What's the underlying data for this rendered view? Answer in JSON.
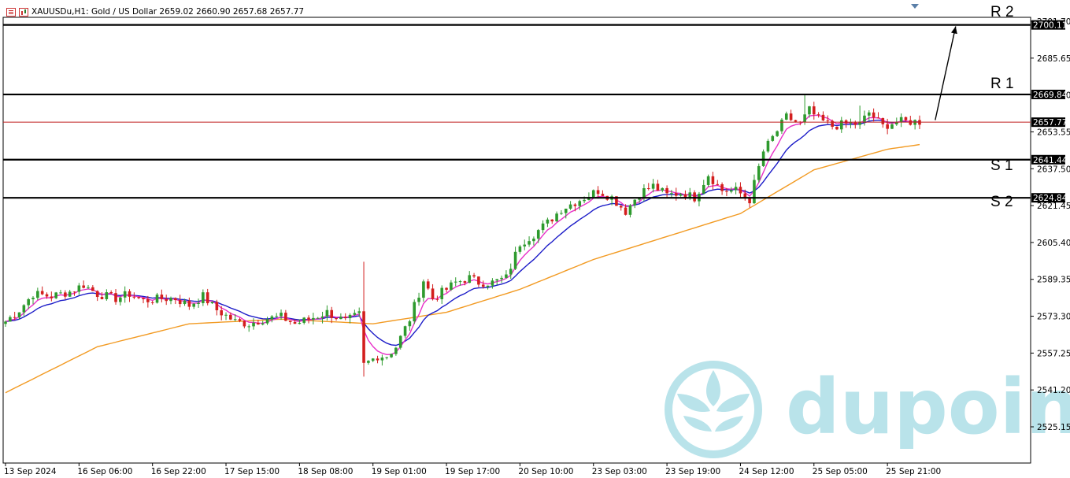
{
  "header": {
    "title": "XAUUSDu,H1:  Gold / US Dollar  2659.02 2660.90 2657.68 2657.77"
  },
  "watermark": {
    "text": "dupoin"
  },
  "colors": {
    "up": "#2e9a2e",
    "down": "#d31e1e",
    "ma_fast": "#e830c8",
    "ma_mid": "#1c1cc8",
    "ma_slow": "#f29a22",
    "price_line": "#c02020",
    "level_line": "#000000"
  },
  "levels": [
    {
      "name": "R 2",
      "price": 2700.11,
      "label": "2700.11"
    },
    {
      "name": "R 1",
      "price": 2669.84,
      "label": "2669.84"
    },
    {
      "name": "S 1",
      "price": 2641.44,
      "label": "2641.44"
    },
    {
      "name": "S 2",
      "price": 2624.84,
      "label": "2624.84"
    }
  ],
  "current_price": {
    "price": 2657.77,
    "label": "2657.77"
  },
  "chart_data": {
    "type": "candlestick",
    "title": "XAUUSDu,H1: Gold / US Dollar",
    "ylim": [
      2512,
      2704
    ],
    "y_ticks": [
      {
        "value": 2701.7,
        "label": "2701.70"
      },
      {
        "value": 2685.65,
        "label": "2685.65"
      },
      {
        "value": 2669.6,
        "label": "2669.60"
      },
      {
        "value": 2653.55,
        "label": "2653.55"
      },
      {
        "value": 2637.5,
        "label": "2637.50"
      },
      {
        "value": 2621.45,
        "label": "2621.45"
      },
      {
        "value": 2605.4,
        "label": "2605.40"
      },
      {
        "value": 2589.35,
        "label": "2589.35"
      },
      {
        "value": 2573.3,
        "label": "2573.30"
      },
      {
        "value": 2557.25,
        "label": "2557.25"
      },
      {
        "value": 2541.2,
        "label": "2541.20"
      },
      {
        "value": 2525.15,
        "label": "2525.15"
      }
    ],
    "x_ticks": [
      {
        "index": 0,
        "label": "13 Sep 2024"
      },
      {
        "index": 16,
        "label": "16 Sep 06:00"
      },
      {
        "index": 32,
        "label": "16 Sep 22:00"
      },
      {
        "index": 48,
        "label": "17 Sep 15:00"
      },
      {
        "index": 64,
        "label": "18 Sep 08:00"
      },
      {
        "index": 80,
        "label": "19 Sep 01:00"
      },
      {
        "index": 96,
        "label": "19 Sep 17:00"
      },
      {
        "index": 112,
        "label": "20 Sep 10:00"
      },
      {
        "index": 128,
        "label": "23 Sep 03:00"
      },
      {
        "index": 144,
        "label": "23 Sep 19:00"
      },
      {
        "index": 160,
        "label": "24 Sep 12:00"
      },
      {
        "index": 176,
        "label": "25 Sep 05:00"
      },
      {
        "index": 192,
        "label": "25 Sep 21:00"
      }
    ],
    "close_path": [
      [
        0,
        2571
      ],
      [
        3,
        2576
      ],
      [
        6,
        2583
      ],
      [
        10,
        2582
      ],
      [
        14,
        2584
      ],
      [
        17,
        2587
      ],
      [
        20,
        2583
      ],
      [
        24,
        2581
      ],
      [
        27,
        2583
      ],
      [
        30,
        2580
      ],
      [
        34,
        2581
      ],
      [
        37,
        2581
      ],
      [
        40,
        2578
      ],
      [
        43,
        2582
      ],
      [
        46,
        2576
      ],
      [
        50,
        2571
      ],
      [
        53,
        2570
      ],
      [
        56,
        2572
      ],
      [
        60,
        2573
      ],
      [
        63,
        2570
      ],
      [
        66,
        2572
      ],
      [
        70,
        2575
      ],
      [
        74,
        2571
      ],
      [
        77,
        2574
      ],
      [
        78,
        2552
      ],
      [
        81,
        2556
      ],
      [
        83,
        2556
      ],
      [
        85,
        2560
      ],
      [
        88,
        2572
      ],
      [
        91,
        2589
      ],
      [
        93,
        2581
      ],
      [
        96,
        2585
      ],
      [
        98,
        2588
      ],
      [
        101,
        2590
      ],
      [
        103,
        2588
      ],
      [
        106,
        2588
      ],
      [
        109,
        2590
      ],
      [
        112,
        2605
      ],
      [
        115,
        2609
      ],
      [
        118,
        2614
      ],
      [
        121,
        2620
      ],
      [
        123,
        2622
      ],
      [
        126,
        2625
      ],
      [
        129,
        2628
      ],
      [
        132,
        2625
      ],
      [
        135,
        2619
      ],
      [
        138,
        2627
      ],
      [
        141,
        2630
      ],
      [
        144,
        2626
      ],
      [
        147,
        2627
      ],
      [
        150,
        2625
      ],
      [
        153,
        2635
      ],
      [
        156,
        2628
      ],
      [
        159,
        2628
      ],
      [
        162,
        2624
      ],
      [
        165,
        2645
      ],
      [
        168,
        2654
      ],
      [
        170,
        2660
      ],
      [
        173,
        2657
      ],
      [
        175,
        2663
      ],
      [
        177,
        2659
      ],
      [
        180,
        2656
      ],
      [
        183,
        2657
      ],
      [
        186,
        2657
      ],
      [
        188,
        2662
      ],
      [
        191,
        2656
      ],
      [
        194,
        2658
      ],
      [
        197,
        2658
      ],
      [
        199,
        2658
      ]
    ],
    "candle_count": 200,
    "series": [
      {
        "name": "MA fast",
        "color": "#e830c8"
      },
      {
        "name": "MA mid",
        "color": "#1c1cc8"
      },
      {
        "name": "MA slow",
        "color": "#f29a22"
      }
    ],
    "ma_slow_anchors": [
      [
        0,
        2540
      ],
      [
        20,
        2560
      ],
      [
        40,
        2570
      ],
      [
        60,
        2572
      ],
      [
        80,
        2570
      ],
      [
        96,
        2575
      ],
      [
        112,
        2585
      ],
      [
        128,
        2598
      ],
      [
        144,
        2608
      ],
      [
        160,
        2618
      ],
      [
        176,
        2637
      ],
      [
        192,
        2646
      ],
      [
        199,
        2648
      ]
    ],
    "projection": {
      "from": [
        200,
        2658
      ],
      "to": [
        2700.5
      ]
    }
  }
}
